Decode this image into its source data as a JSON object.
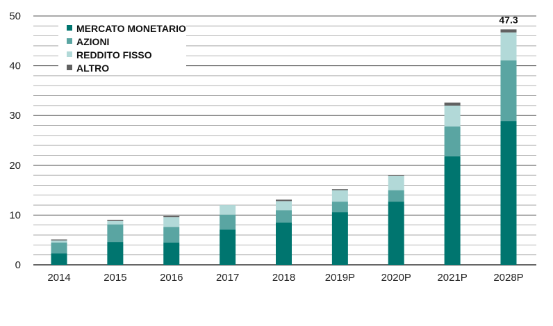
{
  "chart_data": {
    "type": "bar",
    "stacked": true,
    "categories": [
      "2014",
      "2015",
      "2016",
      "2017",
      "2018",
      "2019P",
      "2020P",
      "2021P",
      "2028P"
    ],
    "series": [
      {
        "name": "MERCATO MONETARIO",
        "color": "#00756f",
        "values": [
          2.3,
          4.6,
          4.5,
          7.1,
          8.5,
          10.6,
          12.7,
          21.8,
          28.9
        ]
      },
      {
        "name": "AZIONI",
        "color": "#5aa5a2",
        "values": [
          2.2,
          3.5,
          3.1,
          3.0,
          2.5,
          2.1,
          2.3,
          6.0,
          12.2
        ]
      },
      {
        "name": "REDDITO FISSO",
        "color": "#b2d9d8",
        "values": [
          0.4,
          0.7,
          2.0,
          1.9,
          1.8,
          2.3,
          2.9,
          4.2,
          5.6
        ]
      },
      {
        "name": "ALTRO",
        "color": "#616161",
        "values": [
          0.2,
          0.2,
          0.2,
          0.0,
          0.3,
          0.2,
          0.1,
          0.6,
          0.6
        ]
      }
    ],
    "ylim": [
      0,
      50
    ],
    "y_ticks": [
      0,
      10,
      20,
      30,
      40,
      50
    ],
    "gridlines": "minor every 2 units, major every 10",
    "legend_position": "top-left",
    "annotations": [
      {
        "category": "2028P",
        "text": "47.3"
      }
    ]
  }
}
